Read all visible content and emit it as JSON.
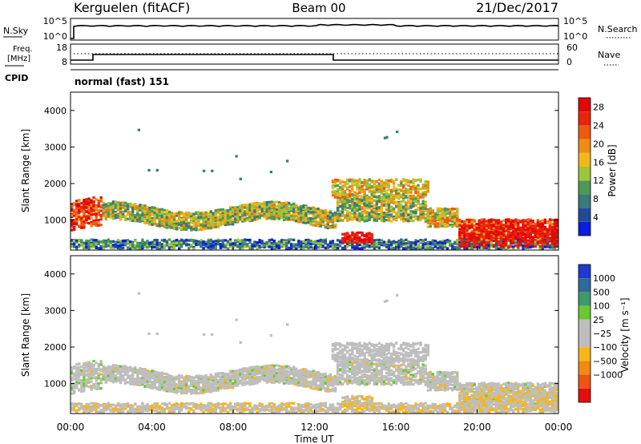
{
  "header": {
    "station": "Kerguelen (fitACF)",
    "beam": "Beam 00",
    "date": "21/Dec/2017"
  },
  "panels": {
    "nsky_label": "N.Sky",
    "nsky_ticks": [
      "10^5",
      "10^0"
    ],
    "nsearch_label": "N.Search",
    "nsearch_ticks": [
      "10^5",
      "10^0"
    ],
    "freq_label_1": "Freq.",
    "freq_label_2": "[MHz]",
    "freq_ticks": [
      "18",
      "8"
    ],
    "nave_label": "Nave",
    "nave_ticks": [
      "60",
      "0"
    ],
    "cpid_label": "CPID",
    "cpid_text": "normal (fast) 151"
  },
  "colors": {
    "power": [
      "#0a1de0",
      "#234a9a",
      "#3a7a78",
      "#4a9a55",
      "#9dc63a",
      "#f2b81a",
      "#f08c14",
      "#ee5a10",
      "#e8240c",
      "#e20808"
    ],
    "velocity": [
      "#1f3ad2",
      "#2f6a9a",
      "#3e9a6a",
      "#6cc832",
      "#bebebe",
      "#bebebe",
      "#f7b615",
      "#f08a12",
      "#ee5410",
      "#e50d0d"
    ]
  },
  "chart_data": [
    {
      "type": "heatmap",
      "title": "Power",
      "ylabel": "Slant Range [km]",
      "ylim": [
        180,
        4500
      ],
      "yticks": [
        "1000",
        "2000",
        "3000",
        "4000"
      ],
      "xlim": [
        0,
        24
      ],
      "x_ticks": [
        "00:00",
        "04:00",
        "08:00",
        "12:00",
        "16:00",
        "20:00",
        "00:00"
      ],
      "colorbar_label": "Power [dB]",
      "colorbar_ticks": [
        "4",
        "8",
        "12",
        "16",
        "20",
        "24",
        "28"
      ],
      "colorbar_range": [
        0,
        30
      ]
    },
    {
      "type": "heatmap",
      "title": "Velocity",
      "ylabel": "Slant Range [km]",
      "ylim": [
        180,
        4500
      ],
      "yticks": [
        "1000",
        "2000",
        "3000",
        "4000"
      ],
      "xlim": [
        0,
        24
      ],
      "x_ticks": [
        "00:00",
        "04:00",
        "08:00",
        "12:00",
        "16:00",
        "20:00",
        "00:00"
      ],
      "xlabel": "Time UT",
      "colorbar_label": "Velocity [m s⁻¹]",
      "colorbar_ticks": [
        "1000",
        "500",
        "100",
        "25",
        "−25",
        "−100",
        "−500",
        "−1000"
      ]
    }
  ]
}
